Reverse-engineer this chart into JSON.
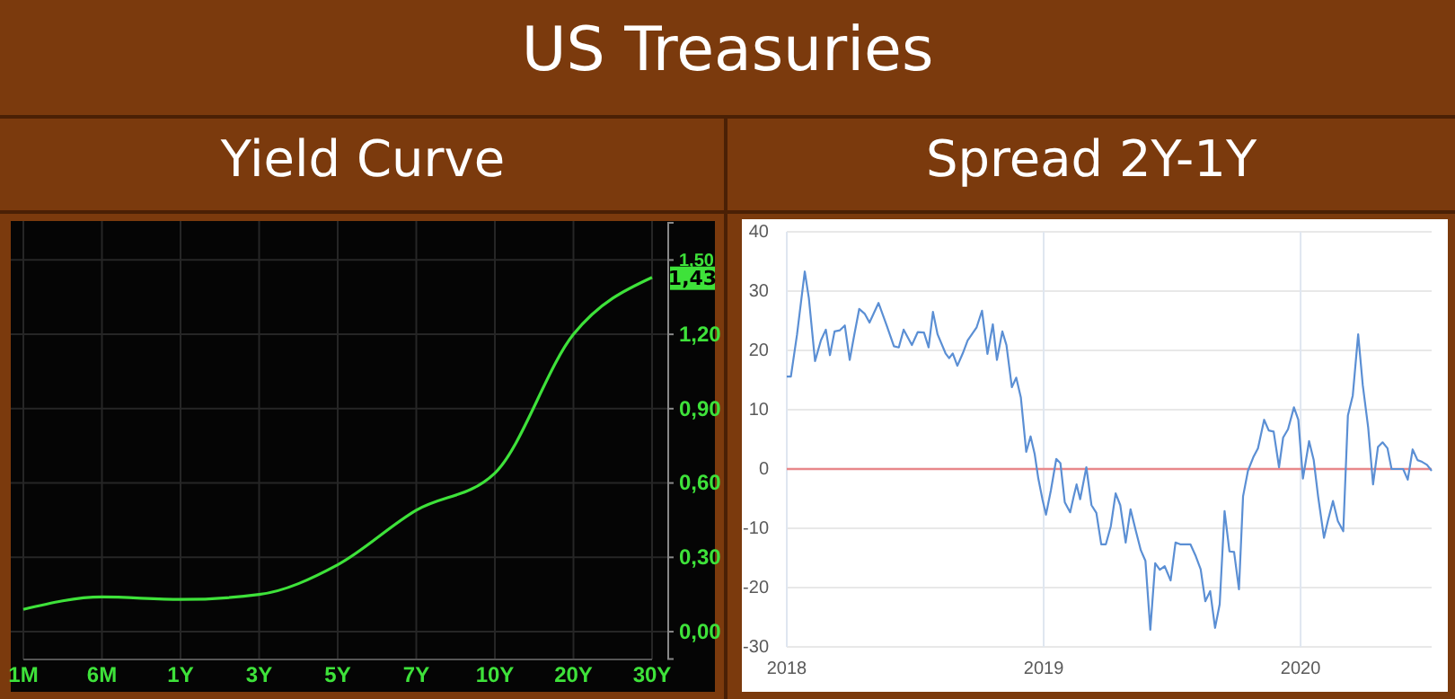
{
  "chart_data": [
    {
      "type": "other",
      "title": "US Treasuries"
    },
    {
      "type": "line",
      "title": "Yield Curve",
      "categories": [
        "1M",
        "6M",
        "1Y",
        "3Y",
        "5Y",
        "7Y",
        "10Y",
        "20Y",
        "30Y"
      ],
      "values": [
        0.09,
        0.14,
        0.13,
        0.15,
        0.27,
        0.49,
        0.64,
        1.2,
        1.43
      ],
      "color": "#3ee23a",
      "ylim": [
        -0.11,
        1.65
      ],
      "yticks": [
        {
          "value": 0,
          "label": "0,00"
        },
        {
          "value": 0.3,
          "label": "0,30"
        },
        {
          "value": 0.6,
          "label": "0,60"
        },
        {
          "value": 0.9,
          "label": "0,90"
        },
        {
          "value": 1.2,
          "label": "1,20"
        },
        {
          "value": 1.5,
          "label": "1,50"
        }
      ],
      "grid": true,
      "annotations": [
        {
          "text": "1,43",
          "x": "30Y",
          "y": 1.43
        }
      ]
    },
    {
      "type": "line",
      "title": "Spread 2Y-1Y",
      "color": "#5b8fd4",
      "xlim": [
        2018,
        2020.51
      ],
      "xticks": [
        2018,
        2019,
        2020
      ],
      "ylim": [
        -30,
        40
      ],
      "yticks": [
        -30,
        -20,
        -10,
        0,
        10,
        20,
        30,
        40
      ],
      "grid": true,
      "ref_lines": [
        {
          "axis": "y",
          "value": 0,
          "color": "#e8878a"
        }
      ],
      "x": [
        2018.0,
        2018.016,
        2018.04,
        2018.07,
        2018.086,
        2018.11,
        2018.133,
        2018.152,
        2018.168,
        2018.186,
        2018.207,
        2018.226,
        2018.245,
        2018.263,
        2018.282,
        2018.303,
        2018.322,
        2018.357,
        2018.389,
        2018.417,
        2018.436,
        2018.455,
        2018.487,
        2018.51,
        2018.534,
        2018.552,
        2018.569,
        2018.587,
        2018.618,
        2018.632,
        2018.646,
        2018.664,
        2018.685,
        2018.704,
        2018.739,
        2018.76,
        2018.781,
        2018.802,
        2018.818,
        2018.839,
        2018.855,
        2018.876,
        2018.893,
        2018.911,
        2018.932,
        2018.949,
        2018.965,
        2018.979,
        2018.995,
        2019.009,
        2019.028,
        2019.049,
        2019.065,
        2019.082,
        2019.103,
        2019.117,
        2019.128,
        2019.142,
        2019.166,
        2019.186,
        2019.205,
        2019.224,
        2019.242,
        2019.261,
        2019.28,
        2019.298,
        2019.319,
        2019.338,
        2019.359,
        2019.378,
        2019.396,
        2019.415,
        2019.434,
        2019.452,
        2019.471,
        2019.494,
        2019.513,
        2019.531,
        2019.55,
        2019.571,
        2019.592,
        2019.611,
        2019.629,
        2019.648,
        2019.667,
        2019.685,
        2019.704,
        2019.723,
        2019.741,
        2019.76,
        2019.776,
        2019.795,
        2019.816,
        2019.834,
        2019.858,
        2019.876,
        2019.895,
        2019.916,
        2019.932,
        2019.951,
        2019.974,
        2019.991,
        2020.009,
        2020.033,
        2020.051,
        2020.068,
        2020.091,
        2020.107,
        2020.126,
        2020.145,
        2020.166,
        2020.184,
        2020.203,
        2020.224,
        2020.242,
        2020.263,
        2020.282,
        2020.301,
        2020.319,
        2020.338,
        2020.354,
        2020.371,
        2020.399,
        2020.417,
        2020.436,
        2020.455,
        2020.473,
        2020.492,
        2020.51
      ],
      "values": [
        15.6,
        15.6,
        22.7,
        33.3,
        28.8,
        18.2,
        21.7,
        23.5,
        19.2,
        23.2,
        23.4,
        24.2,
        18.4,
        22.7,
        27.0,
        26.2,
        24.7,
        28.0,
        24.2,
        20.7,
        20.5,
        23.5,
        20.9,
        23.1,
        23.0,
        20.5,
        26.5,
        22.7,
        19.5,
        18.7,
        19.5,
        17.4,
        19.5,
        21.7,
        23.9,
        26.7,
        19.4,
        24.4,
        18.4,
        23.2,
        20.9,
        13.8,
        15.4,
        12.1,
        2.9,
        5.5,
        2.5,
        -1.6,
        -5.1,
        -7.7,
        -3.6,
        1.7,
        1.0,
        -5.6,
        -7.3,
        -4.6,
        -2.6,
        -5.1,
        0.3,
        -6.1,
        -7.4,
        -12.7,
        -12.7,
        -9.7,
        -4.1,
        -6.1,
        -12.4,
        -6.8,
        -10.5,
        -13.7,
        -15.5,
        -27.1,
        -15.9,
        -17.0,
        -16.4,
        -18.8,
        -12.4,
        -12.7,
        -12.7,
        -12.7,
        -14.7,
        -16.9,
        -22.3,
        -20.6,
        -26.8,
        -22.8,
        -7.1,
        -13.9,
        -14.0,
        -20.3,
        -4.6,
        -0.3,
        2.0,
        3.5,
        8.3,
        6.5,
        6.3,
        0.3,
        5.3,
        6.7,
        10.4,
        8.3,
        -1.6,
        4.7,
        1.5,
        -4.6,
        -11.6,
        -8.6,
        -5.4,
        -8.8,
        -10.5,
        9.0,
        12.4,
        22.7,
        14.1,
        7.0,
        -2.6,
        3.7,
        4.5,
        3.5,
        0.0,
        0.0,
        0.0,
        -1.8,
        3.3,
        1.5,
        1.2,
        0.7,
        -0.3
      ]
    }
  ]
}
